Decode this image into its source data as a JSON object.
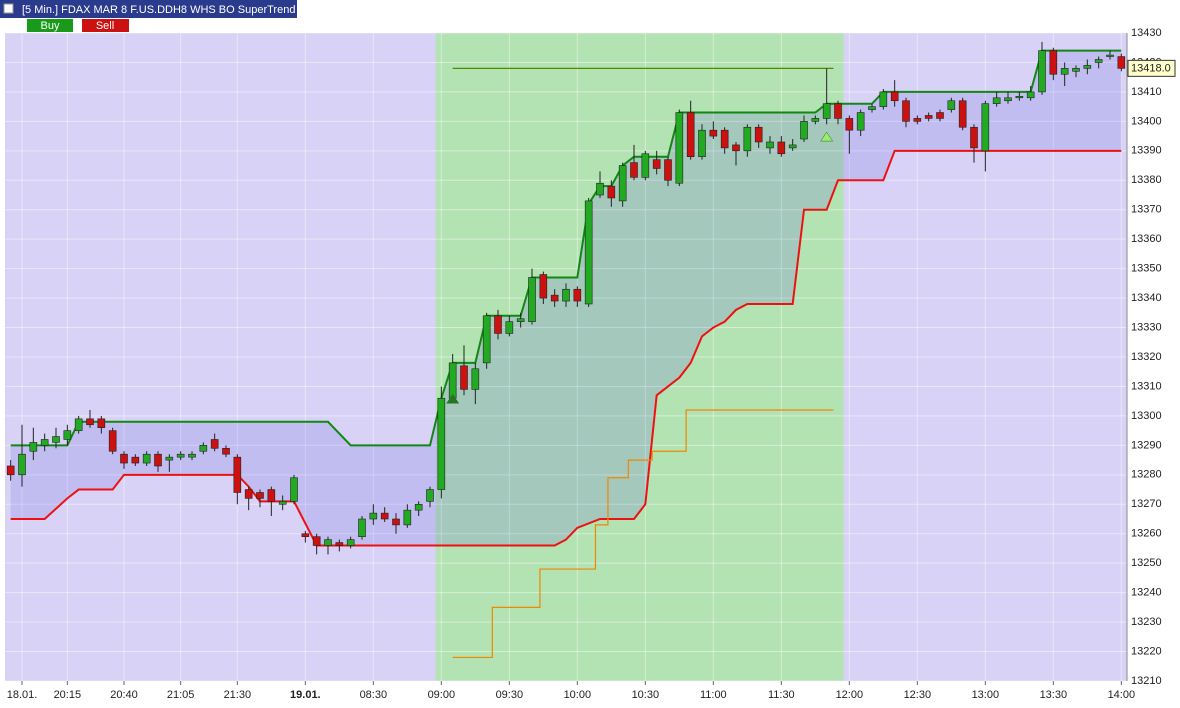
{
  "toolbar": {
    "title": "[5 Min.] FDAX MAR 8  F.US.DDH8 WHS BO SuperTrend",
    "buy": "Buy",
    "sell": "Sell"
  },
  "chart_data": {
    "type": "candlestick",
    "open": [
      13283,
      13280,
      13288,
      13290,
      13291,
      13292,
      13295,
      13299,
      13299,
      13295,
      13287,
      13286,
      13284,
      13287,
      13285,
      13286,
      13286,
      13288,
      13292,
      13289,
      13286,
      13275,
      13274,
      13275,
      13270,
      13271,
      13260,
      13259,
      13256,
      13257,
      13256,
      13259,
      13265,
      13267,
      13265,
      13263,
      13268,
      13271,
      13275,
      13306,
      13317,
      13309,
      13318,
      13334,
      13328,
      13332,
      13332,
      13348,
      13341,
      13339,
      13343,
      13338,
      13375,
      13378,
      13373,
      13386,
      13381,
      13387,
      13387,
      13379,
      13403,
      13388,
      13397,
      13397,
      13392,
      13390,
      13398,
      13391,
      13393,
      13391,
      13394,
      13400,
      13401,
      13406,
      13401,
      13397,
      13404,
      13405,
      13410,
      13407,
      13401,
      13402,
      13403,
      13404,
      13407,
      13398,
      13390,
      13406,
      13407,
      13408,
      13408,
      13410,
      13424,
      13416,
      13417,
      13418,
      13420,
      13422,
      13422
    ],
    "high": [
      13285,
      13297,
      13296,
      13294,
      13296,
      13297,
      13300,
      13302,
      13300,
      13296,
      13288,
      13287,
      13288,
      13288,
      13287,
      13288,
      13288,
      13291,
      13294,
      13290,
      13287,
      13276,
      13275,
      13276,
      13273,
      13280,
      13261,
      13260,
      13259,
      13258,
      13259,
      13266,
      13270,
      13269,
      13267,
      13270,
      13271,
      13276,
      13310,
      13321,
      13324,
      13318,
      13335,
      13336,
      13334,
      13335,
      13350,
      13349,
      13343,
      13345,
      13344,
      13374,
      13383,
      13380,
      13386,
      13392,
      13390,
      13390,
      13388,
      13404,
      13407,
      13399,
      13400,
      13398,
      13393,
      13399,
      13399,
      13395,
      13395,
      13394,
      13402,
      13402,
      13418,
      13407,
      13402,
      13404,
      13406,
      13411,
      13414,
      13408,
      13402,
      13403,
      13404,
      13408,
      13408,
      13399,
      13407,
      13410,
      13410,
      13410,
      13412,
      13427,
      13425,
      13420,
      13419,
      13421,
      13422,
      13424,
      13423
    ],
    "low": [
      13278,
      13276,
      13285,
      13288,
      13289,
      13290,
      13294,
      13296,
      13294,
      13287,
      13282,
      13283,
      13283,
      13281,
      13281,
      13285,
      13285,
      13287,
      13288,
      13286,
      13270,
      13268,
      13269,
      13266,
      13268,
      13270,
      13257,
      13253,
      13253,
      13254,
      13255,
      13258,
      13263,
      13264,
      13260,
      13262,
      13266,
      13269,
      13272,
      13305,
      13307,
      13304,
      13316,
      13326,
      13327,
      13330,
      13331,
      13338,
      13337,
      13337,
      13337,
      13337,
      13374,
      13371,
      13371,
      13380,
      13380,
      13382,
      13378,
      13378,
      13387,
      13387,
      13394,
      13389,
      13385,
      13388,
      13391,
      13389,
      13388,
      13390,
      13393,
      13399,
      13399,
      13399,
      13389,
      13395,
      13403,
      13404,
      13405,
      13398,
      13399,
      13400,
      13400,
      13403,
      13397,
      13386,
      13383,
      13405,
      13406,
      13407,
      13407,
      13409,
      13414,
      13412,
      13415,
      13416,
      13418,
      13421,
      13417
    ],
    "close": [
      13280,
      13287,
      13291,
      13292,
      13293,
      13295,
      13299,
      13297,
      13296,
      13288,
      13284,
      13284,
      13287,
      13283,
      13286,
      13287,
      13287,
      13290,
      13289,
      13287,
      13274,
      13272,
      13272,
      13271,
      13271,
      13279,
      13259,
      13256,
      13258,
      13256,
      13258,
      13265,
      13267,
      13265,
      13263,
      13268,
      13270,
      13275,
      13306,
      13318,
      13309,
      13316,
      13334,
      13328,
      13332,
      13333,
      13347,
      13340,
      13339,
      13343,
      13339,
      13373,
      13379,
      13374,
      13385,
      13381,
      13389,
      13384,
      13380,
      13403,
      13388,
      13397,
      13395,
      13391,
      13390,
      13398,
      13393,
      13393,
      13389,
      13392,
      13400,
      13401,
      13406,
      13401,
      13397,
      13403,
      13405,
      13410,
      13407,
      13400,
      13400,
      13401,
      13401,
      13407,
      13398,
      13391,
      13406,
      13408,
      13408,
      13408.5,
      13410,
      13424,
      13416,
      13418,
      13418,
      13419,
      13421,
      13422.5,
      13418
    ],
    "up_color": "#22aa22",
    "down_color": "#cc1111",
    "lines": [
      {
        "color": "#118811",
        "x": [
          0,
          5,
          6,
          28,
          30,
          37,
          38,
          39,
          41,
          42,
          45,
          46,
          50,
          51,
          52,
          53,
          54,
          55,
          58,
          59,
          71,
          72,
          76,
          77,
          90,
          91,
          98
        ],
        "values": [
          13290,
          13290,
          13298,
          13298,
          13290,
          13290,
          13306,
          13318,
          13318,
          13334,
          13334,
          13347,
          13347,
          13372,
          13378,
          13378,
          13385,
          13388,
          13388,
          13403,
          13403,
          13406,
          13406,
          13410,
          13410,
          13424,
          13424
        ]
      },
      {
        "color": "#ee1111",
        "x": [
          0,
          3,
          5,
          6,
          9,
          10,
          20,
          21,
          22,
          25,
          27,
          48,
          49,
          50,
          52,
          55,
          56,
          57,
          58,
          59,
          60,
          61,
          62,
          63,
          64,
          65,
          69,
          70,
          72,
          73,
          77,
          78,
          98
        ],
        "values": [
          13265,
          13265,
          13272,
          13275,
          13275,
          13280,
          13280,
          13276,
          13271,
          13271,
          13256,
          13256,
          13258,
          13262,
          13265,
          13265,
          13270,
          13307,
          13310,
          13313,
          13318,
          13327,
          13330,
          13332,
          13336,
          13338,
          13338,
          13370,
          13370,
          13380,
          13380,
          13390,
          13390
        ]
      },
      {
        "color": "#ee8800",
        "x": [
          39,
          42.5,
          42.5,
          46.7,
          46.7,
          51.6,
          51.6,
          52.7,
          52.7,
          54.5,
          54.5,
          56.6,
          56.6,
          59.6,
          59.6,
          72.6
        ],
        "values": [
          13218,
          13218,
          13235,
          13235,
          13248,
          13248,
          13263,
          13263,
          13279,
          13279,
          13285,
          13285,
          13288,
          13288,
          13302,
          13302
        ]
      },
      {
        "color": "#558800",
        "x": [
          39,
          72.6
        ],
        "values": [
          13418,
          13418
        ]
      }
    ],
    "signals": {
      "x": [
        39,
        72
      ],
      "values": [
        13306,
        13395
      ],
      "colors": [
        "#227722",
        "#99ee66"
      ]
    },
    "highlight_xlim": [
      37.5,
      73.5
    ],
    "last_price": {
      "value": 13418,
      "label": "13418.0"
    },
    "ylim": [
      13210,
      13430
    ],
    "yticks": [
      13210,
      13220,
      13230,
      13240,
      13250,
      13260,
      13270,
      13280,
      13290,
      13300,
      13310,
      13320,
      13330,
      13340,
      13350,
      13360,
      13370,
      13380,
      13390,
      13400,
      13410,
      13420,
      13430
    ],
    "xlim": [
      -0.5,
      98.5
    ],
    "xticks": [
      {
        "value": 1,
        "label": "18.01."
      },
      {
        "value": 5,
        "label": "20:15"
      },
      {
        "value": 10,
        "label": "20:40"
      },
      {
        "value": 15,
        "label": "21:05"
      },
      {
        "value": 20,
        "label": "21:30"
      },
      {
        "value": 26,
        "label": "19.01.",
        "bold": true
      },
      {
        "value": 32,
        "label": "08:30"
      },
      {
        "value": 38,
        "label": "09:00"
      },
      {
        "value": 44,
        "label": "09:30"
      },
      {
        "value": 50,
        "label": "10:00"
      },
      {
        "value": 56,
        "label": "10:30"
      },
      {
        "value": 62,
        "label": "11:00"
      },
      {
        "value": 68,
        "label": "11:30"
      },
      {
        "value": 74,
        "label": "12:00"
      },
      {
        "value": 80,
        "label": "12:30"
      },
      {
        "value": 86,
        "label": "13:00"
      },
      {
        "value": 92,
        "label": "13:30"
      },
      {
        "value": 98,
        "label": "14:00"
      }
    ],
    "grid": true
  }
}
